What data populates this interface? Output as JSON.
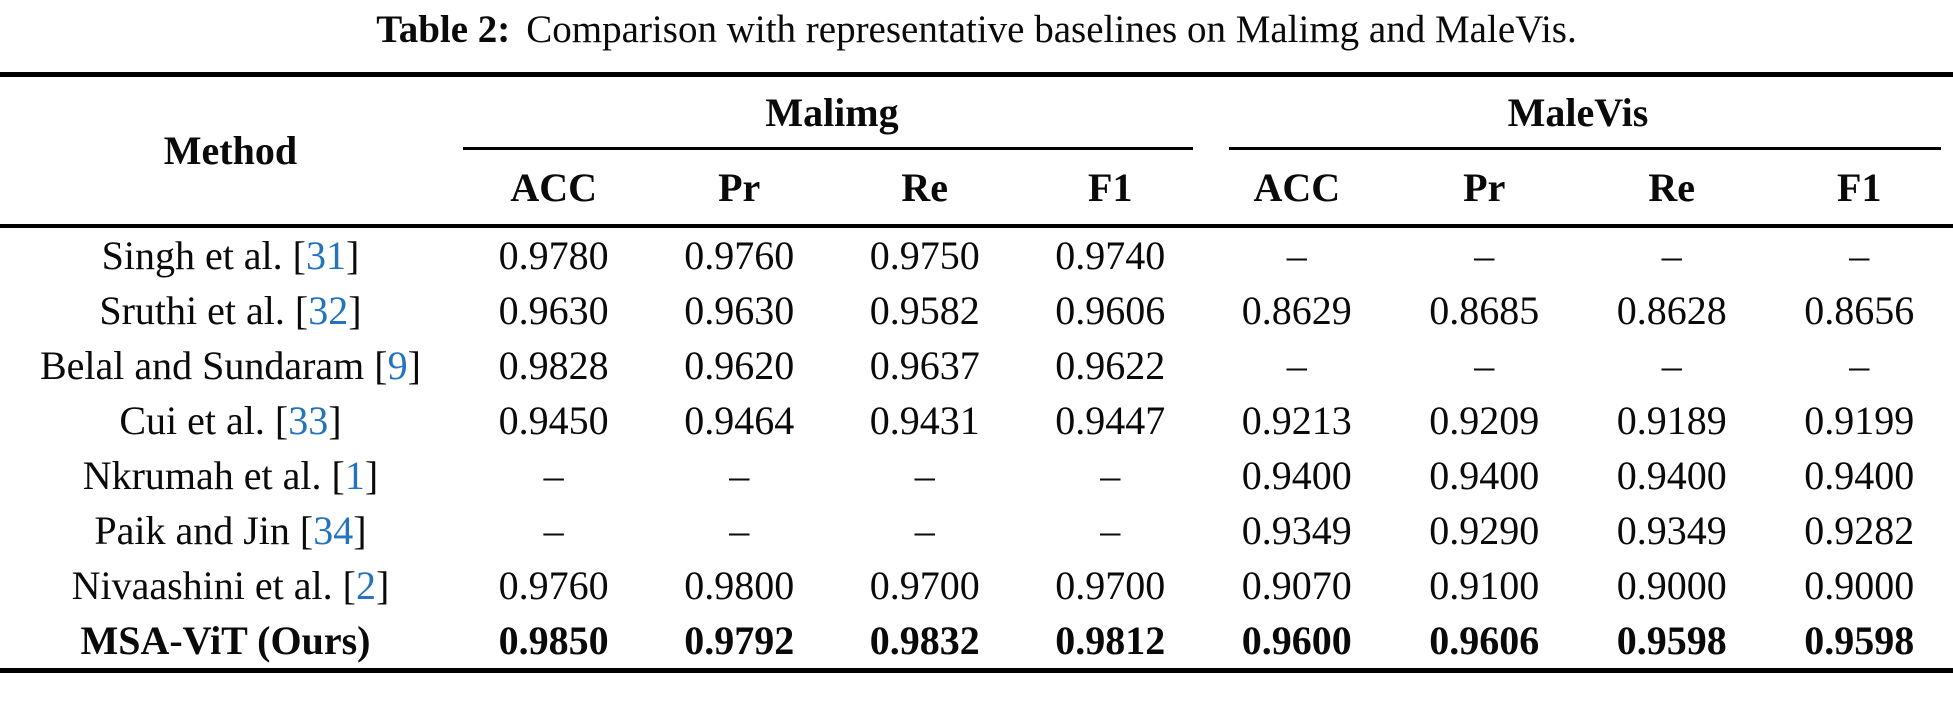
{
  "caption": {
    "label": "Table 2:",
    "text": "Comparison with representative baselines on Malimg and MaleVis."
  },
  "table": {
    "method_header": "Method",
    "groups": [
      {
        "label": "Malimg"
      },
      {
        "label": "MaleVis"
      }
    ],
    "metrics": [
      "ACC",
      "Pr",
      "Re",
      "F1"
    ],
    "rows": [
      {
        "method": "Singh et al.",
        "ob": "[",
        "cite": "31",
        "cb": "]",
        "malimg": [
          "0.9780",
          "0.9760",
          "0.9750",
          "0.9740"
        ],
        "malevis": [
          "–",
          "–",
          "–",
          "–"
        ]
      },
      {
        "method": "Sruthi et al.",
        "ob": "[",
        "cite": "32",
        "cb": "]",
        "malimg": [
          "0.9630",
          "0.9630",
          "0.9582",
          "0.9606"
        ],
        "malevis": [
          "0.8629",
          "0.8685",
          "0.8628",
          "0.8656"
        ]
      },
      {
        "method": "Belal and Sundaram",
        "ob": "[",
        "cite": "9",
        "cb": "]",
        "malimg": [
          "0.9828",
          "0.9620",
          "0.9637",
          "0.9622"
        ],
        "malevis": [
          "–",
          "–",
          "–",
          "–"
        ]
      },
      {
        "method": "Cui et al.",
        "ob": "[",
        "cite": "33",
        "cb": "]",
        "malimg": [
          "0.9450",
          "0.9464",
          "0.9431",
          "0.9447"
        ],
        "malevis": [
          "0.9213",
          "0.9209",
          "0.9189",
          "0.9199"
        ]
      },
      {
        "method": "Nkrumah et al.",
        "ob": "[",
        "cite": "1",
        "cb": "]",
        "malimg": [
          "–",
          "–",
          "–",
          "–"
        ],
        "malevis": [
          "0.9400",
          "0.9400",
          "0.9400",
          "0.9400"
        ]
      },
      {
        "method": "Paik and Jin",
        "ob": "[",
        "cite": "34",
        "cb": "]",
        "malimg": [
          "–",
          "–",
          "–",
          "–"
        ],
        "malevis": [
          "0.9349",
          "0.9290",
          "0.9349",
          "0.9282"
        ]
      },
      {
        "method": "Nivaashini et al.",
        "ob": "[",
        "cite": "2",
        "cb": "]",
        "malimg": [
          "0.9760",
          "0.9800",
          "0.9700",
          "0.9700"
        ],
        "malevis": [
          "0.9070",
          "0.9100",
          "0.9000",
          "0.9000"
        ]
      },
      {
        "method": "MSA-ViT (Ours)",
        "malimg": [
          "0.9850",
          "0.9792",
          "0.9832",
          "0.9812"
        ],
        "malevis": [
          "0.9600",
          "0.9606",
          "0.9598",
          "0.9598"
        ]
      }
    ]
  },
  "colors": {
    "citation_link": "#2373be",
    "text": "#0a0a0a",
    "rule": "#000000",
    "background": "#ffffff"
  }
}
